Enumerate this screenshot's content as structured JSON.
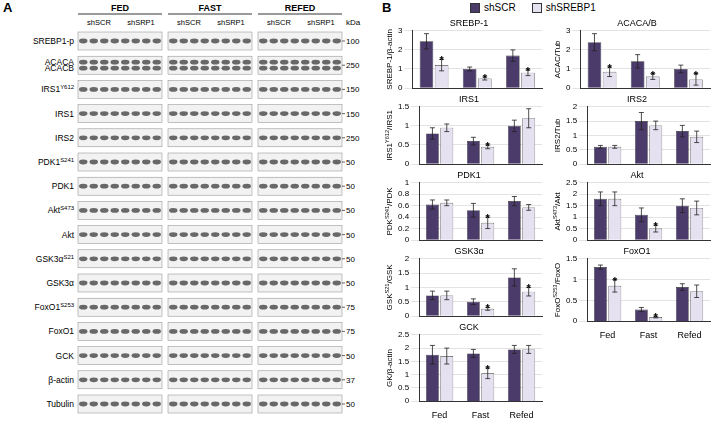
{
  "panel_a": {
    "label": "A",
    "kda_title": "kDa",
    "groups": [
      {
        "name": "FED",
        "subgroups": [
          "shSCR",
          "shSRP1"
        ]
      },
      {
        "name": "FAST",
        "subgroups": [
          "shSCR",
          "shSRP1"
        ]
      },
      {
        "name": "REFED",
        "subgroups": [
          "shSCR",
          "shSRP1"
        ]
      }
    ],
    "rows": [
      {
        "labels": [
          [
            {
              "text": "SREBP1-p"
            }
          ]
        ],
        "kda": 100
      },
      {
        "labels": [
          [
            {
              "text": "ACACA"
            }
          ],
          [
            {
              "text": "ACACB"
            }
          ]
        ],
        "kda": 250
      },
      {
        "labels": [
          [
            {
              "text": "IRS1"
            },
            {
              "text": "Y612",
              "sup": true
            }
          ]
        ],
        "kda": 150
      },
      {
        "labels": [
          [
            {
              "text": "IRS1"
            }
          ]
        ],
        "kda": 150
      },
      {
        "labels": [
          [
            {
              "text": "IRS2"
            }
          ]
        ],
        "kda": 250
      },
      {
        "labels": [
          [
            {
              "text": "PDK1"
            },
            {
              "text": "S241",
              "sup": true
            }
          ]
        ],
        "kda": 50
      },
      {
        "labels": [
          [
            {
              "text": "PDK1"
            }
          ]
        ],
        "kda": 50
      },
      {
        "labels": [
          [
            {
              "text": "Akt"
            },
            {
              "text": "S473",
              "sup": true
            }
          ]
        ],
        "kda": 50
      },
      {
        "labels": [
          [
            {
              "text": "Akt"
            }
          ]
        ],
        "kda": 50
      },
      {
        "labels": [
          [
            {
              "text": "GSK3α"
            },
            {
              "text": "S21",
              "sup": true
            }
          ]
        ],
        "kda": 50
      },
      {
        "labels": [
          [
            {
              "text": "GSK3α"
            }
          ]
        ],
        "kda": 50
      },
      {
        "labels": [
          [
            {
              "text": "FoxO1"
            },
            {
              "text": "S253",
              "sup": true
            }
          ]
        ],
        "kda": 75
      },
      {
        "labels": [
          [
            {
              "text": "FoxO1"
            }
          ]
        ],
        "kda": 75
      },
      {
        "labels": [
          [
            {
              "text": "GCK"
            }
          ]
        ],
        "kda": 50
      },
      {
        "labels": [
          [
            {
              "text": "β-actin"
            }
          ]
        ],
        "kda": 37
      },
      {
        "labels": [
          [
            {
              "text": "Tubulin"
            }
          ]
        ],
        "kda": 50
      }
    ]
  },
  "panel_b": {
    "label": "B"
  },
  "chart_data": [
    {
      "type": "bar",
      "title": "SREBP-1",
      "y_label": [
        {
          "text": "SREBP-1/β-actin"
        }
      ],
      "categories": [
        "Fed",
        "Fast",
        "Refed"
      ],
      "ylim": [
        0,
        3
      ],
      "yticks": [
        0,
        1,
        2,
        3
      ],
      "grid": true,
      "legend": "top",
      "tick_labels": "y",
      "series": [
        {
          "name": "shSCR",
          "color": "#4a3b6b",
          "values": [
            2.45,
            1.0,
            1.7
          ],
          "errors": [
            0.4,
            0.1,
            0.3
          ]
        },
        {
          "name": "shSREBP1",
          "color": "#e6e1f0",
          "values": [
            1.2,
            0.5,
            0.8
          ],
          "errors": [
            0.3,
            0.08,
            0.15
          ]
        }
      ],
      "annotations": [
        {
          "text": "*",
          "category": "Fed",
          "series": "shSREBP1"
        },
        {
          "text": "*",
          "category": "Fast",
          "series": "shSREBP1"
        },
        {
          "text": "*",
          "category": "Refed",
          "series": "shSREBP1"
        }
      ]
    },
    {
      "type": "bar",
      "title": "ACACA/B",
      "y_label": [
        {
          "text": "ACAC/Tub"
        }
      ],
      "categories": [
        "Fed",
        "Fast",
        "Refed"
      ],
      "ylim": [
        0,
        3
      ],
      "yticks": [
        0,
        1,
        2,
        3
      ],
      "grid": true,
      "tick_labels": "y",
      "series": [
        {
          "name": "shSCR",
          "color": "#4a3b6b",
          "values": [
            2.4,
            1.4,
            1.0
          ],
          "errors": [
            0.45,
            0.35,
            0.2
          ]
        },
        {
          "name": "shSREBP1",
          "color": "#e6e1f0",
          "values": [
            0.85,
            0.6,
            0.45
          ],
          "errors": [
            0.25,
            0.15,
            0.3
          ]
        }
      ],
      "annotations": [
        {
          "text": "*",
          "category": "Fed",
          "series": "shSREBP1"
        },
        {
          "text": "*",
          "category": "Fast",
          "series": "shSREBP1"
        },
        {
          "text": "*",
          "category": "Refed",
          "series": "shSREBP1"
        }
      ]
    },
    {
      "type": "bar",
      "title": "IRS1",
      "y_label": [
        {
          "text": "IRS1"
        },
        {
          "text": "Y612",
          "sup": true
        },
        {
          "text": "/IRS1"
        }
      ],
      "categories": [
        "Fed",
        "Fast",
        "Refed"
      ],
      "ylim": [
        0,
        1.5
      ],
      "yticks": [
        0,
        0.5,
        1,
        1.5
      ],
      "grid": true,
      "tick_labels": "y",
      "series": [
        {
          "name": "shSCR",
          "color": "#4a3b6b",
          "values": [
            0.8,
            0.6,
            1.0
          ],
          "errors": [
            0.15,
            0.1,
            0.15
          ]
        },
        {
          "name": "shSREBP1",
          "color": "#e6e1f0",
          "values": [
            0.95,
            0.45,
            1.2
          ],
          "errors": [
            0.1,
            0.05,
            0.25
          ]
        }
      ],
      "annotations": [
        {
          "text": "*",
          "category": "Fast",
          "series": "shSREBP1"
        }
      ]
    },
    {
      "type": "bar",
      "title": "IRS2",
      "y_label": [
        {
          "text": "IRS2/Tub"
        }
      ],
      "categories": [
        "Fed",
        "Fast",
        "Refed"
      ],
      "ylim": [
        0,
        2
      ],
      "yticks": [
        0,
        0.5,
        1,
        1.5,
        2
      ],
      "grid": true,
      "tick_labels": "y",
      "series": [
        {
          "name": "shSCR",
          "color": "#4a3b6b",
          "values": [
            0.6,
            1.5,
            1.15
          ],
          "errors": [
            0.05,
            0.3,
            0.2
          ]
        },
        {
          "name": "shSREBP1",
          "color": "#e6e1f0",
          "values": [
            0.6,
            1.35,
            0.95
          ],
          "errors": [
            0.05,
            0.15,
            0.2
          ]
        }
      ],
      "annotations": []
    },
    {
      "type": "bar",
      "title": "PDK1",
      "y_label": [
        {
          "text": "PDK"
        },
        {
          "text": "S241",
          "sup": true
        },
        {
          "text": "/PDK"
        }
      ],
      "categories": [
        "Fed",
        "Fast",
        "Refed"
      ],
      "ylim": [
        0,
        1
      ],
      "yticks": [
        0,
        0.2,
        0.4,
        0.6,
        0.8,
        1
      ],
      "grid": true,
      "tick_labels": "y",
      "series": [
        {
          "name": "shSCR",
          "color": "#4a3b6b",
          "values": [
            0.62,
            0.52,
            0.68
          ],
          "errors": [
            0.08,
            0.12,
            0.08
          ]
        },
        {
          "name": "shSREBP1",
          "color": "#e6e1f0",
          "values": [
            0.65,
            0.3,
            0.57
          ],
          "errors": [
            0.05,
            0.1,
            0.05
          ]
        }
      ],
      "annotations": [
        {
          "text": "*",
          "category": "Fast",
          "series": "shSREBP1"
        }
      ]
    },
    {
      "type": "bar",
      "title": "Akt",
      "y_label": [
        {
          "text": "Akt"
        },
        {
          "text": "S473",
          "sup": true
        },
        {
          "text": "/Akt"
        }
      ],
      "categories": [
        "Fed",
        "Fast",
        "Refed"
      ],
      "ylim": [
        0,
        2.5
      ],
      "yticks": [
        0,
        0.5,
        1,
        1.5,
        2,
        2.5
      ],
      "grid": true,
      "tick_labels": "y",
      "series": [
        {
          "name": "shSCR",
          "color": "#4a3b6b",
          "values": [
            1.8,
            1.1,
            1.5
          ],
          "errors": [
            0.3,
            0.3,
            0.3
          ]
        },
        {
          "name": "shSREBP1",
          "color": "#e6e1f0",
          "values": [
            1.8,
            0.5,
            1.4
          ],
          "errors": [
            0.3,
            0.15,
            0.3
          ]
        }
      ],
      "annotations": [
        {
          "text": "*",
          "category": "Fast",
          "series": "shSREBP1"
        }
      ]
    },
    {
      "type": "bar",
      "title": "GSK3α",
      "y_label": [
        {
          "text": "GSK"
        },
        {
          "text": "S21",
          "sup": true
        },
        {
          "text": "/GSK"
        }
      ],
      "categories": [
        "Fed",
        "Fast",
        "Refed"
      ],
      "ylim": [
        0,
        2
      ],
      "yticks": [
        0,
        0.5,
        1,
        1.5,
        2
      ],
      "grid": true,
      "tick_labels": "y",
      "series": [
        {
          "name": "shSCR",
          "color": "#4a3b6b",
          "values": [
            0.72,
            0.5,
            1.35
          ],
          "errors": [
            0.15,
            0.1,
            0.3
          ]
        },
        {
          "name": "shSREBP1",
          "color": "#e6e1f0",
          "values": [
            0.72,
            0.25,
            0.85
          ],
          "errors": [
            0.15,
            0.05,
            0.15
          ]
        }
      ],
      "annotations": [
        {
          "text": "*",
          "category": "Fast",
          "series": "shSREBP1"
        },
        {
          "text": "*",
          "category": "Refed",
          "series": "shSREBP1"
        }
      ]
    },
    {
      "type": "bar",
      "title": "FoxO1",
      "y_label": [
        {
          "text": "FoxO"
        },
        {
          "text": "S253",
          "sup": true
        },
        {
          "text": "/FoxO"
        }
      ],
      "categories": [
        "Fed",
        "Fast",
        "Refed"
      ],
      "ylim": [
        0,
        1.5
      ],
      "yticks": [
        0,
        0.5,
        1,
        1.5
      ],
      "grid": true,
      "series": [
        {
          "name": "shSCR",
          "color": "#4a3b6b",
          "values": [
            1.3,
            0.28,
            0.82
          ],
          "errors": [
            0.05,
            0.05,
            0.08
          ]
        },
        {
          "name": "shSREBP1",
          "color": "#e6e1f0",
          "values": [
            0.85,
            0.1,
            0.72
          ],
          "errors": [
            0.15,
            0.02,
            0.15
          ]
        }
      ],
      "annotations": [
        {
          "text": "*",
          "category": "Fed",
          "series": "shSREBP1"
        },
        {
          "text": "*",
          "category": "Fast",
          "series": "shSREBP1"
        }
      ]
    },
    {
      "type": "bar",
      "title": "GCK",
      "y_label": [
        {
          "text": "GK/β-actin"
        }
      ],
      "categories": [
        "Fed",
        "Fast",
        "Refed"
      ],
      "ylim": [
        0,
        2.5
      ],
      "yticks": [
        0,
        0.5,
        1,
        1.5,
        2,
        2.5
      ],
      "grid": true,
      "series": [
        {
          "name": "shSCR",
          "color": "#4a3b6b",
          "values": [
            1.75,
            1.8,
            1.95
          ],
          "errors": [
            0.35,
            0.15,
            0.15
          ]
        },
        {
          "name": "shSREBP1",
          "color": "#e6e1f0",
          "values": [
            1.7,
            1.05,
            1.95
          ],
          "errors": [
            0.3,
            0.2,
            0.15
          ]
        }
      ],
      "annotations": [
        {
          "text": "*",
          "category": "Fast",
          "series": "shSREBP1"
        }
      ]
    }
  ]
}
